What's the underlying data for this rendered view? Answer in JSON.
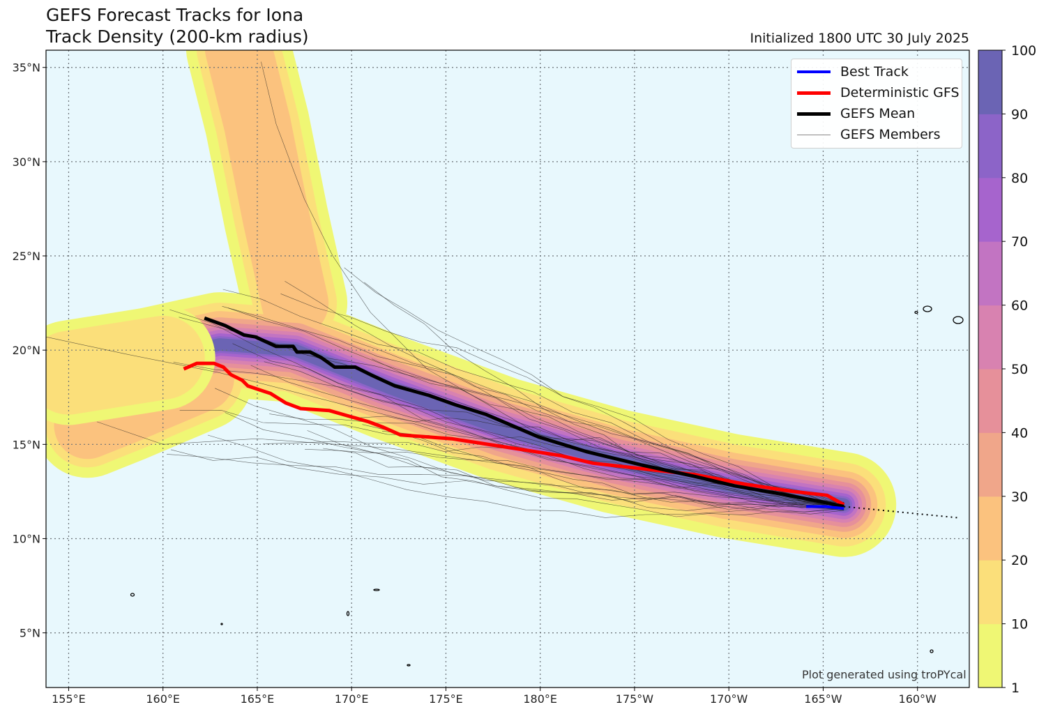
{
  "title_line1": "GEFS Forecast Tracks for Iona",
  "title_line2": "Track Density (200-km radius)",
  "initialized": "Initialized 1800 UTC 30 July 2025",
  "credit": "Plot generated using troPYcal",
  "legend": [
    {
      "label": "Best Track",
      "color": "#0000ff",
      "width": 4
    },
    {
      "label": "Deterministic GFS",
      "color": "#ff0000",
      "width": 5
    },
    {
      "label": "GEFS Mean",
      "color": "#000000",
      "width": 5
    },
    {
      "label": "GEFS Members",
      "color": "#888888",
      "width": 1
    }
  ],
  "colors": {
    "ocean": "#e8f8fd",
    "grid": "#6a7075",
    "band_colors": [
      "#eff774",
      "#fbdf7a",
      "#fbc27e",
      "#f0a68a",
      "#e6909a",
      "#d882b0",
      "#c274c2",
      "#a664cd",
      "#8c64c8",
      "#6b64b4"
    ]
  },
  "axes": {
    "lon_ticks": [
      155,
      160,
      165,
      170,
      175,
      180,
      185,
      190,
      195,
      200
    ],
    "lon_labels": [
      "155°E",
      "160°E",
      "165°E",
      "170°E",
      "175°E",
      "180°E",
      "175°W",
      "170°W",
      "165°W",
      "160°W"
    ],
    "lat_ticks": [
      5,
      10,
      15,
      20,
      25,
      30,
      35
    ],
    "lat_labels": [
      "5°N",
      "10°N",
      "15°N",
      "20°N",
      "25°N",
      "30°N",
      "35°N"
    ]
  },
  "colorbar": {
    "ticks": [
      1,
      10,
      20,
      30,
      40,
      50,
      60,
      70,
      80,
      90,
      100
    ],
    "labels": [
      "1",
      "10",
      "20",
      "30",
      "40",
      "50",
      "60",
      "70",
      "80",
      "90",
      "100"
    ]
  },
  "tracks": {
    "best_track": [
      [
        194.1,
        11.7
      ],
      [
        195.1,
        11.7
      ],
      [
        196.1,
        11.6
      ]
    ],
    "deterministic_gfs": [
      [
        161.1,
        19.0
      ],
      [
        161.8,
        19.3
      ],
      [
        162.7,
        19.3
      ],
      [
        163.2,
        19.1
      ],
      [
        163.6,
        18.7
      ],
      [
        164.2,
        18.4
      ],
      [
        164.5,
        18.1
      ],
      [
        165.7,
        17.7
      ],
      [
        166.5,
        17.2
      ],
      [
        167.3,
        16.9
      ],
      [
        168.8,
        16.8
      ],
      [
        170.9,
        16.2
      ],
      [
        171.7,
        15.9
      ],
      [
        172.6,
        15.5
      ],
      [
        175.3,
        15.3
      ],
      [
        177.9,
        14.9
      ],
      [
        181.1,
        14.4
      ],
      [
        182.8,
        14.0
      ],
      [
        185.5,
        13.7
      ],
      [
        188.2,
        13.4
      ],
      [
        190.8,
        12.9
      ],
      [
        193.4,
        12.5
      ],
      [
        195.2,
        12.3
      ],
      [
        196.1,
        11.8
      ]
    ],
    "gefs_mean": [
      [
        162.2,
        21.7
      ],
      [
        163.3,
        21.3
      ],
      [
        164.3,
        20.8
      ],
      [
        164.9,
        20.7
      ],
      [
        166.0,
        20.2
      ],
      [
        166.9,
        20.2
      ],
      [
        167.1,
        19.9
      ],
      [
        167.8,
        19.9
      ],
      [
        168.4,
        19.6
      ],
      [
        169.1,
        19.1
      ],
      [
        170.2,
        19.1
      ],
      [
        171.0,
        18.7
      ],
      [
        172.3,
        18.1
      ],
      [
        174.1,
        17.6
      ],
      [
        175.5,
        17.1
      ],
      [
        177.1,
        16.6
      ],
      [
        179.9,
        15.4
      ],
      [
        182.5,
        14.6
      ],
      [
        185.4,
        13.9
      ],
      [
        188.2,
        13.3
      ],
      [
        190.3,
        12.8
      ],
      [
        192.6,
        12.4
      ],
      [
        194.7,
        12.0
      ],
      [
        196.1,
        11.7
      ]
    ],
    "extrapolation": [
      [
        196.1,
        11.7
      ],
      [
        202.2,
        11.1
      ]
    ]
  }
}
